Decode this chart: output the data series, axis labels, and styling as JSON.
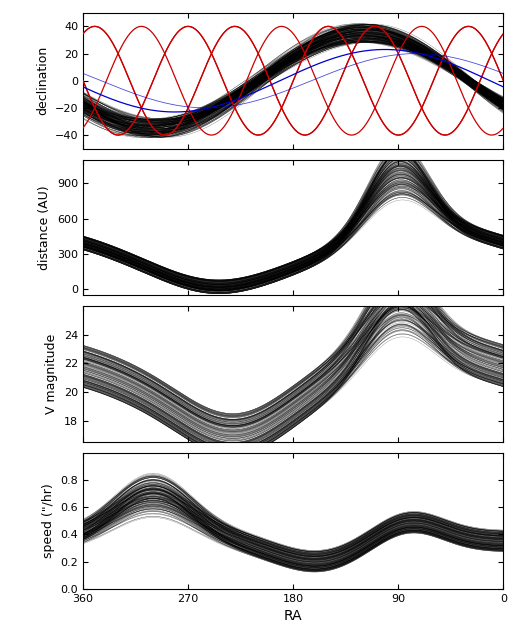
{
  "title": "",
  "xlabel": "RA",
  "panel_labels": [
    "declination",
    "distance (AU)",
    "V magnitude",
    "speed (\"/hr)"
  ],
  "ra_range": [
    360,
    0
  ],
  "dec_ylim": [
    -50,
    50
  ],
  "dec_yticks": [
    -40,
    -20,
    0,
    20,
    40
  ],
  "dist_ylim": [
    -50,
    1100
  ],
  "dist_yticks": [
    0,
    300,
    600,
    900
  ],
  "vmag_ylim": [
    16.5,
    26
  ],
  "vmag_yticks": [
    18,
    20,
    22,
    24
  ],
  "speed_ylim": [
    0.0,
    1.0
  ],
  "speed_yticks": [
    0.0,
    0.2,
    0.4,
    0.6,
    0.8
  ],
  "n_orbits": 200,
  "background_color": "#ffffff",
  "line_color": "#000000",
  "ecliptic_color": "#cc0000",
  "galactic_color": "#0000cc"
}
